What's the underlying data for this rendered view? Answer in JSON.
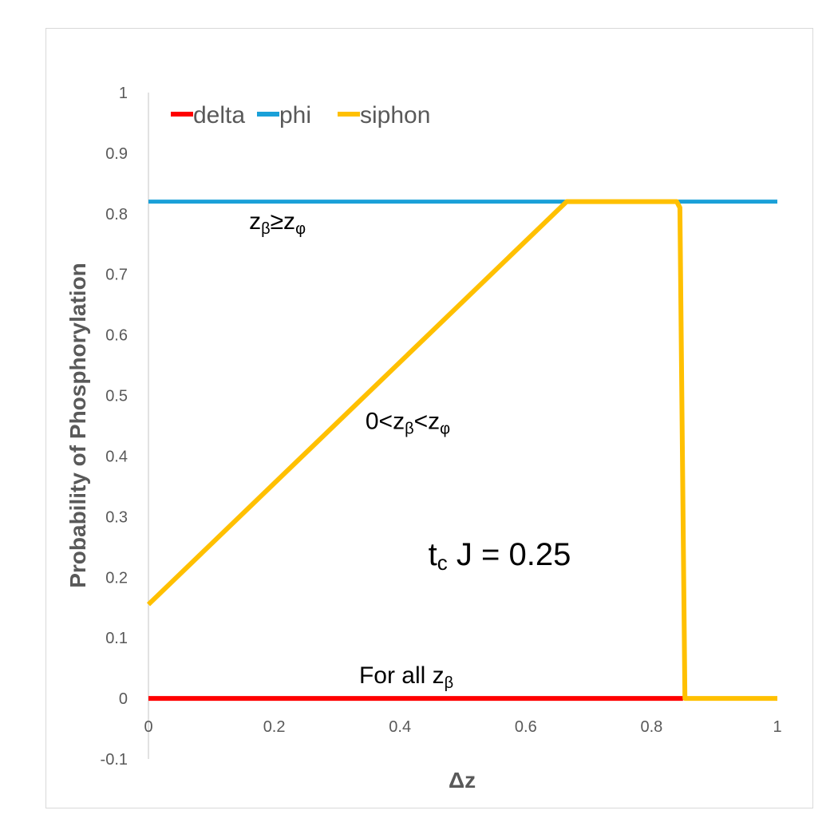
{
  "chart_data": {
    "type": "line",
    "xlabel": "Δz",
    "ylabel": "Probability of Phosphorylation",
    "xlim": [
      0,
      1
    ],
    "ylim": [
      -0.1,
      1
    ],
    "x_ticks": [
      "0",
      "0.2",
      "0.4",
      "0.6",
      "0.8",
      "1"
    ],
    "y_ticks": [
      "-0.1",
      "0",
      "0.1",
      "0.2",
      "0.3",
      "0.4",
      "0.5",
      "0.6",
      "0.7",
      "0.8",
      "0.9",
      "1"
    ],
    "grid": false,
    "legend": {
      "position": "top-left",
      "entries": [
        {
          "name": "delta",
          "color": "#ff0000"
        },
        {
          "name": "phi",
          "color": "#1aa0d8"
        },
        {
          "name": "siphon",
          "color": "#ffc000"
        }
      ]
    },
    "series": [
      {
        "name": "delta",
        "color": "#ff0000",
        "points": [
          [
            0,
            0
          ],
          [
            0.85,
            0
          ]
        ]
      },
      {
        "name": "phi",
        "color": "#1aa0d8",
        "points": [
          [
            0,
            0.82
          ],
          [
            1,
            0.82
          ]
        ]
      },
      {
        "name": "siphon",
        "color": "#ffc000",
        "points": [
          [
            0,
            0.155
          ],
          [
            0.665,
            0.82
          ],
          [
            0.84,
            0.82
          ],
          [
            0.845,
            0.81
          ],
          [
            0.853,
            0
          ],
          [
            1,
            0
          ]
        ]
      }
    ],
    "annotations": [
      {
        "text": "z",
        "sub1": "β",
        "mid": "≥z",
        "sub2": "φ",
        "x": 0.16,
        "y": 0.775
      },
      {
        "text": "0<z",
        "sub1": "β",
        "mid": "<z",
        "sub2": "φ",
        "x": 0.345,
        "y": 0.445
      },
      {
        "text": "t",
        "sub1": "c",
        "mid": " J = 0.25",
        "sub2": "",
        "x": 0.445,
        "y": 0.22
      },
      {
        "text": "For all z",
        "sub1": "β",
        "mid": "",
        "sub2": "",
        "x": 0.335,
        "y": 0.025
      }
    ]
  }
}
